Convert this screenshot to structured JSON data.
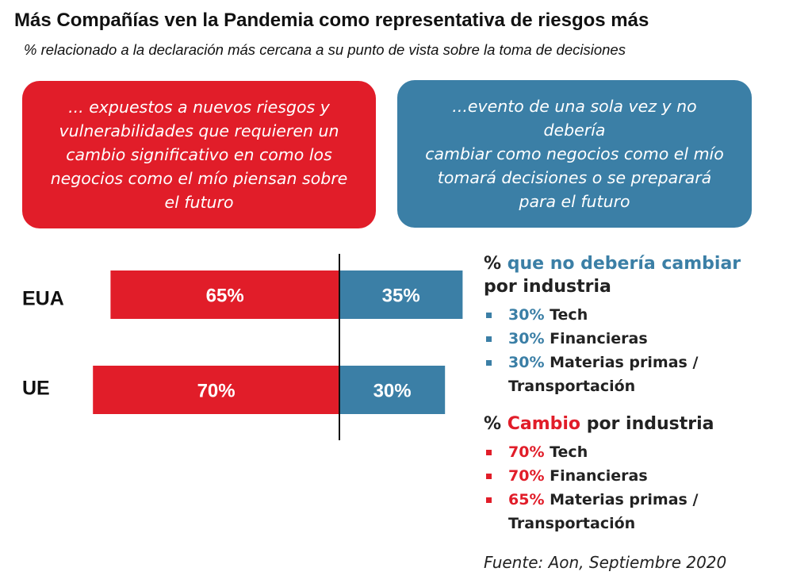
{
  "title": "Más Compañías ven la Pandemia como representativa de riesgos más",
  "subtitle": "% relacionado a la declaración más cercana a su punto de vista sobre la toma de decisiones",
  "statements": {
    "red": [
      "... expuestos a nuevos riesgos y",
      "vulnerabilidades que requieren un",
      "cambio significativo en como los",
      "negocios  como el mío piensan sobre",
      "el futuro"
    ],
    "blue": [
      "...evento de una sola vez y no debería",
      "cambiar como negocios como el mío",
      "tomará decisiones o se preparará",
      "para el futuro"
    ]
  },
  "colors": {
    "red": "#e11d29",
    "blue": "#3b7fa6"
  },
  "chart_data": {
    "type": "bar",
    "orientation": "horizontal-diverging",
    "categories": [
      "EUA",
      "UE"
    ],
    "series": [
      {
        "values": [
          65,
          70
        ],
        "labels": [
          "65%",
          "70%"
        ],
        "color": "#e11d29"
      },
      {
        "values": [
          35,
          30
        ],
        "labels": [
          "35%",
          "30%"
        ],
        "color": "#3b7fa6"
      }
    ]
  },
  "no_change": {
    "heading_prefix": "% ",
    "heading_accent": "que no debería cambiar",
    "heading_suffix": "por industria",
    "items": [
      {
        "pct": "30%",
        "label": "Tech"
      },
      {
        "pct": "30%",
        "label": "Financieras"
      },
      {
        "pct": "30%",
        "label": "Materias primas /",
        "label2": "Transportación"
      }
    ]
  },
  "change": {
    "heading_prefix": "% ",
    "heading_accent": "Cambio",
    "heading_suffix": " por industria",
    "items": [
      {
        "pct": "70%",
        "label": "Tech"
      },
      {
        "pct": "70%",
        "label": "Financieras"
      },
      {
        "pct": "65%",
        "label": "Materias primas /",
        "label2": "Transportación"
      }
    ]
  },
  "source": "Fuente: Aon, Septiembre 2020"
}
